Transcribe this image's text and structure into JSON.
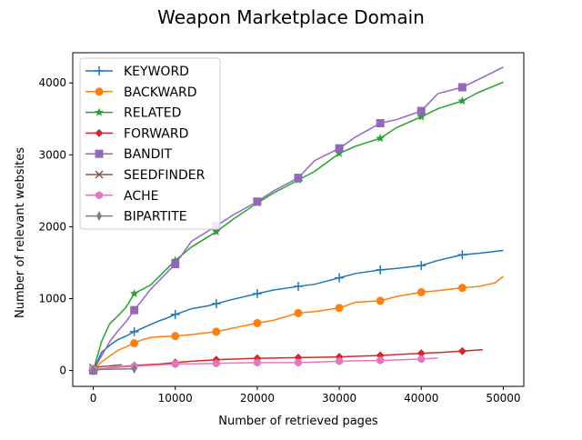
{
  "chart_data": {
    "type": "line",
    "title": "Weapon Marketplace Domain",
    "xlabel": "Number of retrieved pages",
    "ylabel": "Number of relevant websites",
    "xlim": [
      -2500,
      52500
    ],
    "ylim": [
      -220,
      4420
    ],
    "xticks": [
      0,
      10000,
      20000,
      30000,
      40000,
      50000
    ],
    "yticks": [
      0,
      1000,
      2000,
      3000,
      4000
    ],
    "grid": false,
    "legend_position": "top-left",
    "series": [
      {
        "name": "KEYWORD",
        "color": "#1f77b4",
        "marker": "plus",
        "x": [
          0,
          1000,
          2000,
          3000,
          4000,
          5000,
          6000,
          7000,
          8000,
          9000,
          10000,
          12000,
          14000,
          15000,
          17000,
          20000,
          22000,
          25000,
          27000,
          30000,
          32000,
          35000,
          37000,
          40000,
          42000,
          45000,
          47000,
          50000
        ],
        "y": [
          0,
          250,
          350,
          430,
          480,
          540,
          590,
          640,
          690,
          730,
          780,
          860,
          900,
          930,
          990,
          1070,
          1120,
          1170,
          1200,
          1290,
          1350,
          1400,
          1420,
          1460,
          1530,
          1610,
          1630,
          1670
        ],
        "marker_x": [
          0,
          5000,
          10000,
          15000,
          20000,
          25000,
          30000,
          35000,
          40000,
          45000
        ]
      },
      {
        "name": "BACKWARD",
        "color": "#ff7f0e",
        "marker": "circle",
        "x": [
          0,
          1000,
          2000,
          3000,
          4000,
          5000,
          6000,
          7000,
          8000,
          10000,
          12000,
          15000,
          17000,
          20000,
          22000,
          25000,
          27000,
          30000,
          32000,
          35000,
          37000,
          40000,
          42000,
          45000,
          47000,
          49000,
          50000
        ],
        "y": [
          0,
          120,
          200,
          280,
          330,
          380,
          430,
          460,
          470,
          480,
          500,
          540,
          590,
          660,
          700,
          800,
          820,
          870,
          950,
          970,
          1030,
          1090,
          1110,
          1150,
          1170,
          1220,
          1310
        ],
        "marker_x": [
          0,
          5000,
          10000,
          15000,
          20000,
          25000,
          30000,
          35000,
          40000,
          45000
        ]
      },
      {
        "name": "RELATED",
        "color": "#2ca02c",
        "marker": "star",
        "x": [
          0,
          1000,
          2000,
          3000,
          4000,
          5000,
          7000,
          10000,
          12000,
          15000,
          17000,
          20000,
          22000,
          25000,
          27000,
          30000,
          32000,
          35000,
          37000,
          40000,
          42000,
          45000,
          47000,
          50000
        ],
        "y": [
          0,
          400,
          650,
          760,
          880,
          1070,
          1190,
          1530,
          1720,
          1930,
          2100,
          2330,
          2470,
          2650,
          2770,
          3020,
          3120,
          3230,
          3380,
          3530,
          3640,
          3750,
          3870,
          4010
        ],
        "marker_x": [
          0,
          5000,
          10000,
          15000,
          20000,
          25000,
          30000,
          35000,
          40000,
          45000
        ]
      },
      {
        "name": "FORWARD",
        "color": "#d62728",
        "marker": "diamond-filled",
        "x": [
          0,
          2000,
          5000,
          8000,
          10000,
          12000,
          15000,
          17000,
          20000,
          25000,
          30000,
          35000,
          40000,
          42000,
          45000,
          47500
        ],
        "y": [
          0,
          40,
          70,
          90,
          110,
          130,
          150,
          160,
          170,
          180,
          190,
          210,
          240,
          250,
          270,
          290
        ],
        "marker_x": [
          0,
          5000,
          10000,
          15000,
          20000,
          25000,
          30000,
          35000,
          40000,
          45000
        ]
      },
      {
        "name": "BANDIT",
        "color": "#9467bd",
        "marker": "square",
        "x": [
          0,
          1000,
          2000,
          3000,
          4000,
          5000,
          7000,
          10000,
          12000,
          15000,
          17000,
          20000,
          22000,
          25000,
          27000,
          30000,
          32000,
          35000,
          37000,
          40000,
          42000,
          45000,
          47000,
          50000
        ],
        "y": [
          0,
          200,
          400,
          550,
          680,
          840,
          1130,
          1480,
          1800,
          2010,
          2160,
          2350,
          2500,
          2680,
          2920,
          3090,
          3250,
          3440,
          3490,
          3610,
          3850,
          3940,
          4050,
          4220
        ],
        "marker_x": [
          0,
          5000,
          10000,
          15000,
          20000,
          25000,
          30000,
          35000,
          40000,
          45000
        ]
      },
      {
        "name": "SEEDFINDER",
        "color": "#8c564b",
        "marker": "x",
        "x": [
          0,
          1000,
          2000,
          3000,
          3500
        ],
        "y": [
          40,
          55,
          65,
          75,
          80
        ],
        "marker_x": [
          0
        ]
      },
      {
        "name": "ACHE",
        "color": "#e377c2",
        "marker": "hexagon",
        "x": [
          0,
          5000,
          10000,
          15000,
          20000,
          25000,
          30000,
          35000,
          40000,
          42000
        ],
        "y": [
          20,
          60,
          90,
          100,
          110,
          110,
          130,
          140,
          160,
          175
        ],
        "marker_x": [
          0,
          5000,
          10000,
          15000,
          20000,
          25000,
          30000,
          35000,
          40000
        ]
      },
      {
        "name": "BIPARTITE",
        "color": "#7f7f7f",
        "marker": "thin-diamond",
        "x": [
          0,
          1000,
          2000,
          3000,
          4000,
          5000
        ],
        "y": [
          10,
          15,
          18,
          20,
          22,
          25
        ],
        "marker_x": [
          0,
          5000
        ]
      }
    ]
  }
}
